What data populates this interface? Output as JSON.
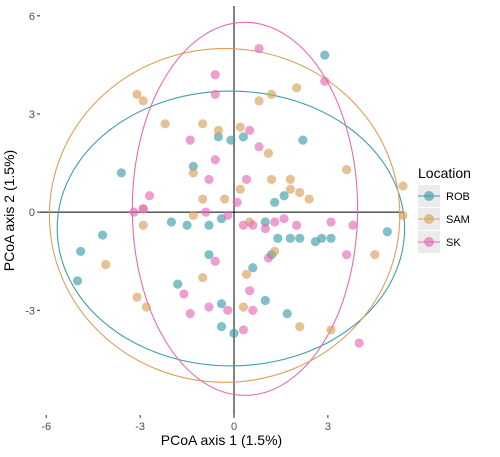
{
  "chart_data": {
    "type": "scatter",
    "xlabel": "PCoA axis 1 (1.5%)",
    "ylabel": "PCoA axis 2 (1.5%)",
    "xlim": [
      -6.2,
      5.4
    ],
    "ylim": [
      -6.2,
      6.3
    ],
    "x_ticks": [
      -6,
      -3,
      0,
      3
    ],
    "y_ticks": [
      -3,
      0,
      3,
      6
    ],
    "x_tick_labels": [
      "-6",
      "-3",
      "0",
      "3"
    ],
    "y_tick_labels": [
      "-3",
      "0",
      "3",
      "6"
    ],
    "grid": false,
    "reference_lines": {
      "x": 0,
      "y": 0
    },
    "legend": {
      "title": "Location",
      "position": "right"
    },
    "series": [
      {
        "name": "ROB",
        "color": "#3E9EAA",
        "ellipse": {
          "center": [
            -0.1,
            -0.5
          ],
          "radius_x": 5.55,
          "radius_y": 4.2
        },
        "points": [
          [
            2.9,
            4.8
          ],
          [
            -3.6,
            1.2
          ],
          [
            0.3,
            2.3
          ],
          [
            -0.5,
            2.3
          ],
          [
            -1.3,
            1.4
          ],
          [
            2.2,
            2.2
          ],
          [
            -4.2,
            -0.7
          ],
          [
            -4.9,
            -1.2
          ],
          [
            -5.0,
            -2.1
          ],
          [
            -2.0,
            -0.3
          ],
          [
            -1.5,
            -0.4
          ],
          [
            -0.8,
            -0.4
          ],
          [
            -0.4,
            -0.2
          ],
          [
            1.0,
            -0.3
          ],
          [
            1.3,
            0.3
          ],
          [
            1.4,
            -0.8
          ],
          [
            1.8,
            -0.8
          ],
          [
            2.1,
            -0.8
          ],
          [
            2.6,
            -0.9
          ],
          [
            2.8,
            -0.8
          ],
          [
            3.1,
            -0.8
          ],
          [
            4.9,
            -0.6
          ],
          [
            1.2,
            -1.3
          ],
          [
            -1.8,
            -2.2
          ],
          [
            0.0,
            -3.7
          ],
          [
            -0.4,
            -2.8
          ],
          [
            1.0,
            -2.7
          ],
          [
            1.7,
            -3.1
          ],
          [
            -0.4,
            -3.5
          ],
          [
            -0.8,
            -1.3
          ],
          [
            0.6,
            -1.7
          ],
          [
            1.6,
            0.5
          ],
          [
            -0.1,
            2.2
          ]
        ]
      },
      {
        "name": "SAM",
        "color": "#D9A05B",
        "ellipse": {
          "center": [
            -0.3,
            -0.1
          ],
          "radius_x": 5.6,
          "radius_y": 5.1
        },
        "points": [
          [
            -3.1,
            3.6
          ],
          [
            -2.9,
            3.4
          ],
          [
            -2.2,
            2.7
          ],
          [
            2.0,
            3.8
          ],
          [
            1.2,
            3.6
          ],
          [
            0.8,
            3.4
          ],
          [
            -1.0,
            2.7
          ],
          [
            -0.5,
            2.5
          ],
          [
            0.2,
            2.6
          ],
          [
            1.1,
            1.8
          ],
          [
            -1.3,
            1.2
          ],
          [
            1.2,
            1.0
          ],
          [
            1.8,
            1.0
          ],
          [
            2.1,
            0.6
          ],
          [
            2.4,
            0.4
          ],
          [
            -1.0,
            0.4
          ],
          [
            0.2,
            0.7
          ],
          [
            3.6,
            1.3
          ],
          [
            5.4,
            0.8
          ],
          [
            5.4,
            -0.1
          ],
          [
            4.5,
            -1.3
          ],
          [
            -4.1,
            -1.6
          ],
          [
            -3.1,
            -2.6
          ],
          [
            -2.8,
            -2.9
          ],
          [
            -1.0,
            -2.0
          ],
          [
            0.4,
            -1.9
          ],
          [
            1.3,
            -1.2
          ],
          [
            0.3,
            -2.9
          ],
          [
            2.1,
            -3.5
          ],
          [
            3.1,
            -3.6
          ],
          [
            -2.9,
            0.1
          ],
          [
            -1.3,
            -0.1
          ],
          [
            -0.3,
            0.4
          ],
          [
            1.8,
            0.7
          ],
          [
            -2.9,
            -0.4
          ],
          [
            0.5,
            -0.3
          ]
        ]
      },
      {
        "name": "SK",
        "color": "#E56AB5",
        "ellipse": {
          "center": [
            0.35,
            0.1
          ],
          "radius_x": 3.6,
          "radius_y": 5.7
        },
        "points": [
          [
            0.8,
            5.0
          ],
          [
            2.9,
            4.0
          ],
          [
            -0.6,
            4.2
          ],
          [
            -0.6,
            3.6
          ],
          [
            -1.4,
            2.2
          ],
          [
            0.5,
            2.5
          ],
          [
            0.8,
            2.0
          ],
          [
            -0.6,
            1.6
          ],
          [
            -0.8,
            1.0
          ],
          [
            0.4,
            1.0
          ],
          [
            0.1,
            0.3
          ],
          [
            -2.7,
            0.5
          ],
          [
            -2.9,
            0.1
          ],
          [
            -3.2,
            0.0
          ],
          [
            -0.9,
            0.0
          ],
          [
            -0.2,
            -0.1
          ],
          [
            0.3,
            -0.4
          ],
          [
            0.6,
            -0.4
          ],
          [
            1.0,
            -0.5
          ],
          [
            1.3,
            -0.3
          ],
          [
            1.6,
            -0.2
          ],
          [
            2.0,
            -0.4
          ],
          [
            3.1,
            -0.3
          ],
          [
            3.6,
            -1.3
          ],
          [
            1.1,
            -1.4
          ],
          [
            -0.6,
            -1.5
          ],
          [
            -1.6,
            -2.5
          ],
          [
            0.5,
            -2.4
          ],
          [
            -0.8,
            -2.9
          ],
          [
            -1.4,
            -3.1
          ],
          [
            0.6,
            -3.0
          ],
          [
            0.3,
            -3.6
          ],
          [
            4.0,
            -4.0
          ],
          [
            3.8,
            -0.4
          ],
          [
            -0.2,
            -3.0
          ]
        ]
      }
    ]
  }
}
